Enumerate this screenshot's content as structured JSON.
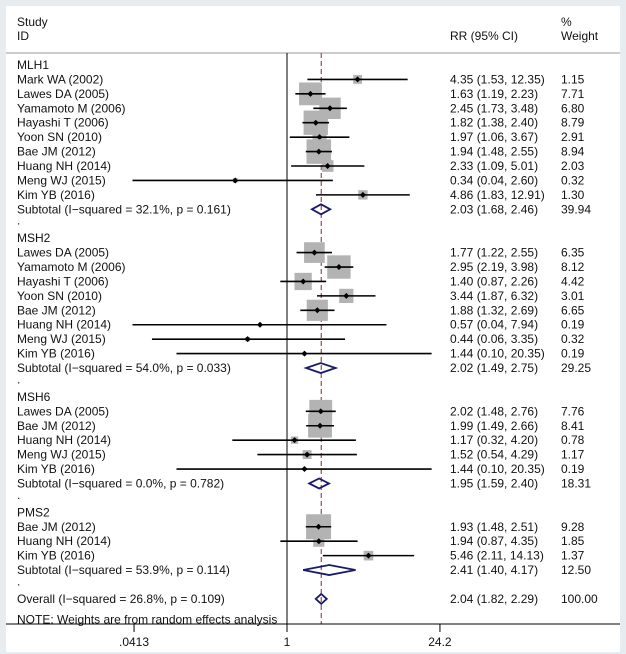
{
  "chart_data": {
    "type": "forest",
    "header": {
      "study": "Study",
      "id": "ID",
      "rr": "RR (95% CI)",
      "pct": "%",
      "weight": "Weight"
    },
    "colors": {
      "box": "#b3b3b3",
      "diamond": "#1a1a6b",
      "ref_line": "#8b2a2a",
      "line": "#000000"
    },
    "groups": [
      {
        "name": "MLH1",
        "studies": [
          {
            "id": "Mark WA (2002)",
            "rr": 4.35,
            "lo": 1.53,
            "hi": 12.35,
            "ci_text": "4.35 (1.53, 12.35)",
            "weight": 1.15,
            "weight_text": "1.15"
          },
          {
            "id": "Lawes DA (2005)",
            "rr": 1.63,
            "lo": 1.19,
            "hi": 2.23,
            "ci_text": "1.63 (1.19, 2.23)",
            "weight": 7.71,
            "weight_text": "7.71"
          },
          {
            "id": "Yamamoto M (2006)",
            "rr": 2.45,
            "lo": 1.73,
            "hi": 3.48,
            "ci_text": "2.45 (1.73, 3.48)",
            "weight": 6.8,
            "weight_text": "6.80"
          },
          {
            "id": "Hayashi T (2006)",
            "rr": 1.82,
            "lo": 1.38,
            "hi": 2.4,
            "ci_text": "1.82 (1.38, 2.40)",
            "weight": 8.79,
            "weight_text": "8.79"
          },
          {
            "id": "Yoon SN (2010)",
            "rr": 1.97,
            "lo": 1.06,
            "hi": 3.67,
            "ci_text": "1.97 (1.06, 3.67)",
            "weight": 2.91,
            "weight_text": "2.91"
          },
          {
            "id": "Bae JM (2012)",
            "rr": 1.94,
            "lo": 1.48,
            "hi": 2.55,
            "ci_text": "1.94 (1.48, 2.55)",
            "weight": 8.94,
            "weight_text": "8.94"
          },
          {
            "id": "Huang NH (2014)",
            "rr": 2.33,
            "lo": 1.09,
            "hi": 5.01,
            "ci_text": "2.33 (1.09, 5.01)",
            "weight": 2.03,
            "weight_text": "2.03"
          },
          {
            "id": "Meng WJ (2015)",
            "rr": 0.34,
            "lo": 0.04,
            "hi": 2.6,
            "ci_text": "0.34 (0.04, 2.60)",
            "weight": 0.32,
            "weight_text": "0.32"
          },
          {
            "id": "Kim YB (2016)",
            "rr": 4.86,
            "lo": 1.83,
            "hi": 12.91,
            "ci_text": "4.86 (1.83, 12.91)",
            "weight": 1.3,
            "weight_text": "1.30"
          }
        ],
        "subtotal": {
          "label": "Subtotal  (I−squared = 32.1%, p = 0.161)",
          "rr": 2.03,
          "lo": 1.68,
          "hi": 2.46,
          "ci_text": "2.03 (1.68, 2.46)",
          "weight_text": "39.94"
        }
      },
      {
        "name": "MSH2",
        "studies": [
          {
            "id": "Lawes DA (2005)",
            "rr": 1.77,
            "lo": 1.22,
            "hi": 2.55,
            "ci_text": "1.77 (1.22, 2.55)",
            "weight": 6.35,
            "weight_text": "6.35"
          },
          {
            "id": "Yamamoto M (2006)",
            "rr": 2.95,
            "lo": 2.19,
            "hi": 3.98,
            "ci_text": "2.95 (2.19, 3.98)",
            "weight": 8.12,
            "weight_text": "8.12"
          },
          {
            "id": "Hayashi T (2006)",
            "rr": 1.4,
            "lo": 0.87,
            "hi": 2.26,
            "ci_text": "1.40 (0.87, 2.26)",
            "weight": 4.42,
            "weight_text": "4.42"
          },
          {
            "id": "Yoon SN (2010)",
            "rr": 3.44,
            "lo": 1.87,
            "hi": 6.32,
            "ci_text": "3.44 (1.87, 6.32)",
            "weight": 3.01,
            "weight_text": "3.01"
          },
          {
            "id": "Bae JM (2012)",
            "rr": 1.88,
            "lo": 1.32,
            "hi": 2.69,
            "ci_text": "1.88 (1.32, 2.69)",
            "weight": 6.65,
            "weight_text": "6.65"
          },
          {
            "id": "Huang NH (2014)",
            "rr": 0.57,
            "lo": 0.04,
            "hi": 7.94,
            "ci_text": "0.57 (0.04, 7.94)",
            "weight": 0.19,
            "weight_text": "0.19"
          },
          {
            "id": "Meng WJ (2015)",
            "rr": 0.44,
            "lo": 0.06,
            "hi": 3.35,
            "ci_text": "0.44 (0.06, 3.35)",
            "weight": 0.32,
            "weight_text": "0.32"
          },
          {
            "id": "Kim YB (2016)",
            "rr": 1.44,
            "lo": 0.1,
            "hi": 20.35,
            "ci_text": "1.44 (0.10, 20.35)",
            "weight": 0.19,
            "weight_text": "0.19"
          }
        ],
        "subtotal": {
          "label": "Subtotal  (I−squared = 54.0%, p = 0.033)",
          "rr": 2.02,
          "lo": 1.49,
          "hi": 2.75,
          "ci_text": "2.02 (1.49, 2.75)",
          "weight_text": "29.25"
        }
      },
      {
        "name": "MSH6",
        "studies": [
          {
            "id": "Lawes DA (2005)",
            "rr": 2.02,
            "lo": 1.48,
            "hi": 2.76,
            "ci_text": "2.02 (1.48, 2.76)",
            "weight": 7.76,
            "weight_text": "7.76"
          },
          {
            "id": "Bae JM (2012)",
            "rr": 1.99,
            "lo": 1.49,
            "hi": 2.66,
            "ci_text": "1.99 (1.49, 2.66)",
            "weight": 8.41,
            "weight_text": "8.41"
          },
          {
            "id": "Huang NH (2014)",
            "rr": 1.17,
            "lo": 0.32,
            "hi": 4.2,
            "ci_text": "1.17 (0.32, 4.20)",
            "weight": 0.78,
            "weight_text": "0.78"
          },
          {
            "id": "Meng WJ (2015)",
            "rr": 1.52,
            "lo": 0.54,
            "hi": 4.29,
            "ci_text": "1.52 (0.54, 4.29)",
            "weight": 1.17,
            "weight_text": "1.17"
          },
          {
            "id": "Kim YB (2016)",
            "rr": 1.44,
            "lo": 0.1,
            "hi": 20.35,
            "ci_text": "1.44 (0.10, 20.35)",
            "weight": 0.19,
            "weight_text": "0.19"
          }
        ],
        "subtotal": {
          "label": "Subtotal  (I−squared = 0.0%, p = 0.782)",
          "rr": 1.95,
          "lo": 1.59,
          "hi": 2.4,
          "ci_text": "1.95 (1.59, 2.40)",
          "weight_text": "18.31"
        }
      },
      {
        "name": "PMS2",
        "studies": [
          {
            "id": "Bae JM (2012)",
            "rr": 1.93,
            "lo": 1.48,
            "hi": 2.51,
            "ci_text": "1.93 (1.48, 2.51)",
            "weight": 9.28,
            "weight_text": "9.28"
          },
          {
            "id": "Huang NH (2014)",
            "rr": 1.94,
            "lo": 0.87,
            "hi": 4.35,
            "ci_text": "1.94 (0.87, 4.35)",
            "weight": 1.85,
            "weight_text": "1.85"
          },
          {
            "id": "Kim YB (2016)",
            "rr": 5.46,
            "lo": 2.11,
            "hi": 14.13,
            "ci_text": "5.46 (2.11, 14.13)",
            "weight": 1.37,
            "weight_text": "1.37"
          }
        ],
        "subtotal": {
          "label": "Subtotal  (I−squared = 53.9%, p = 0.114)",
          "rr": 2.41,
          "lo": 1.4,
          "hi": 4.17,
          "ci_text": "2.41 (1.40, 4.17)",
          "weight_text": "12.50"
        }
      }
    ],
    "separator": ".",
    "overall": {
      "label": "Overall  (I−squared = 26.8%, p = 0.109)",
      "rr": 2.04,
      "lo": 1.82,
      "hi": 2.29,
      "ci_text": "2.04 (1.82, 2.29)",
      "weight_text": "100.00"
    },
    "note": "NOTE: Weights are from random effects analysis",
    "x_axis": {
      "scale": "log",
      "ticks": [
        0.0413,
        1,
        24.2
      ],
      "tick_labels": [
        ".0413",
        "1",
        "24.2"
      ],
      "null_value": 1,
      "ref_value": 2.04
    }
  }
}
